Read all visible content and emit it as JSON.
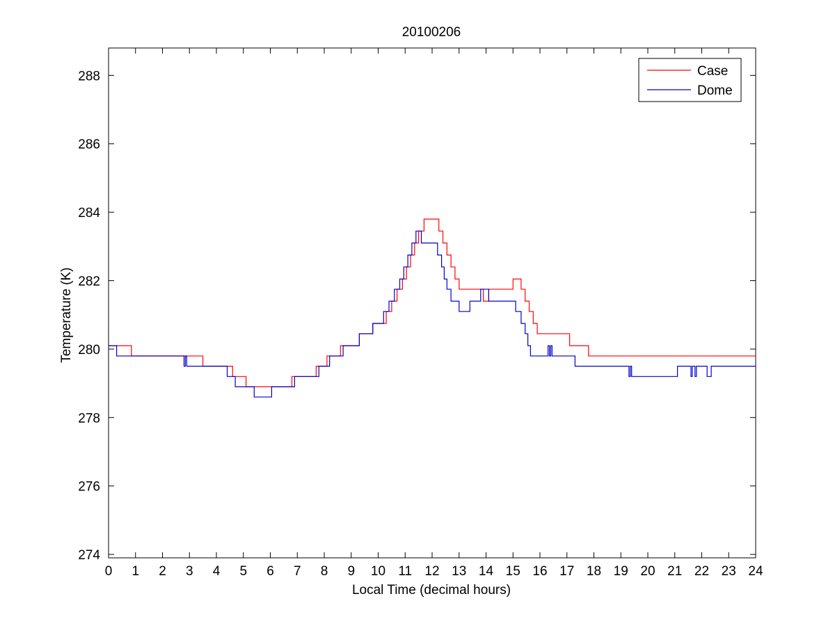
{
  "chart_data": {
    "type": "line",
    "title": "20100206",
    "xlabel": "Local Time (decimal hours)",
    "ylabel": "Temperature (K)",
    "xlim": [
      0,
      24
    ],
    "ylim": [
      273.9,
      288.8
    ],
    "xticks": [
      0,
      1,
      2,
      3,
      4,
      5,
      6,
      7,
      8,
      9,
      10,
      11,
      12,
      13,
      14,
      15,
      16,
      17,
      18,
      19,
      20,
      21,
      22,
      23,
      24
    ],
    "yticks": [
      274,
      276,
      278,
      280,
      282,
      284,
      286,
      288
    ],
    "grid": false,
    "legend_position": "top-right",
    "series": [
      {
        "name": "Case",
        "color": "#ff0000",
        "x": [
          0,
          0.85,
          0.85,
          3.5,
          3.5,
          4.6,
          4.6,
          5.1,
          5.1,
          6.05,
          6.05,
          6.8,
          6.8,
          7.7,
          7.7,
          8.1,
          8.1,
          8.6,
          8.6,
          9.3,
          9.3,
          9.8,
          9.8,
          10.3,
          10.3,
          10.5,
          10.5,
          10.7,
          10.7,
          10.9,
          10.9,
          11.05,
          11.05,
          11.2,
          11.2,
          11.35,
          11.35,
          11.5,
          11.5,
          11.7,
          11.7,
          12.25,
          12.25,
          12.4,
          12.4,
          12.55,
          12.55,
          12.7,
          12.7,
          12.85,
          12.85,
          13.0,
          13.0,
          13.9,
          13.9,
          14.1,
          14.1,
          15.0,
          15.0,
          15.3,
          15.3,
          15.45,
          15.45,
          15.6,
          15.6,
          15.75,
          15.75,
          15.9,
          15.9,
          16.1,
          16.1,
          17.1,
          17.1,
          17.8,
          17.8,
          24
        ],
        "y": [
          280.1,
          280.1,
          279.8,
          279.8,
          279.5,
          279.5,
          279.2,
          279.2,
          278.9,
          278.9,
          278.9,
          278.9,
          279.2,
          279.2,
          279.5,
          279.5,
          279.8,
          279.8,
          280.1,
          280.1,
          280.45,
          280.45,
          280.75,
          280.75,
          281.1,
          281.1,
          281.4,
          281.4,
          281.75,
          281.75,
          282.05,
          282.05,
          282.4,
          282.4,
          282.75,
          282.75,
          283.1,
          283.1,
          283.45,
          283.45,
          283.8,
          283.8,
          283.45,
          283.45,
          283.1,
          283.1,
          282.75,
          282.75,
          282.4,
          282.4,
          282.05,
          282.05,
          281.75,
          281.75,
          281.4,
          281.4,
          281.75,
          281.75,
          282.05,
          282.05,
          281.75,
          281.75,
          281.4,
          281.4,
          281.1,
          281.1,
          280.75,
          280.75,
          280.45,
          280.45,
          280.45,
          280.45,
          280.1,
          280.1,
          279.8,
          279.8
        ]
      },
      {
        "name": "Dome",
        "color": "#0000cc",
        "x": [
          0,
          0.3,
          0.3,
          2.8,
          2.8,
          2.85,
          2.85,
          2.9,
          2.9,
          2.95,
          2.95,
          4.4,
          4.4,
          4.7,
          4.7,
          5.4,
          5.4,
          6.05,
          6.05,
          6.9,
          6.9,
          7.8,
          7.8,
          8.2,
          8.2,
          8.7,
          8.7,
          9.3,
          9.3,
          9.8,
          9.8,
          10.2,
          10.2,
          10.4,
          10.4,
          10.6,
          10.6,
          10.8,
          10.8,
          10.95,
          10.95,
          11.1,
          11.1,
          11.25,
          11.25,
          11.4,
          11.4,
          11.6,
          11.6,
          12.2,
          12.2,
          12.35,
          12.35,
          12.45,
          12.45,
          12.55,
          12.55,
          12.7,
          12.7,
          13.0,
          13.0,
          13.4,
          13.4,
          13.8,
          13.8,
          14.1,
          14.1,
          15.1,
          15.1,
          15.3,
          15.3,
          15.45,
          15.45,
          15.55,
          15.55,
          15.65,
          15.65,
          16.3,
          16.3,
          16.35,
          16.35,
          16.4,
          16.4,
          16.45,
          16.45,
          17.3,
          17.3,
          19.3,
          19.3,
          19.35,
          19.35,
          19.4,
          19.4,
          21.1,
          21.1,
          21.6,
          21.6,
          21.65,
          21.65,
          21.75,
          21.75,
          21.8,
          21.8,
          22.2,
          22.2,
          22.35,
          22.35,
          24
        ],
        "y": [
          280.1,
          280.1,
          279.8,
          279.8,
          279.5,
          279.5,
          279.8,
          279.8,
          279.5,
          279.5,
          279.5,
          279.5,
          279.2,
          279.2,
          278.9,
          278.9,
          278.6,
          278.6,
          278.9,
          278.9,
          279.2,
          279.2,
          279.5,
          279.5,
          279.8,
          279.8,
          280.1,
          280.1,
          280.45,
          280.45,
          280.75,
          280.75,
          281.1,
          281.1,
          281.4,
          281.4,
          281.75,
          281.75,
          282.05,
          282.05,
          282.4,
          282.4,
          282.75,
          282.75,
          283.1,
          283.1,
          283.45,
          283.45,
          283.1,
          283.1,
          282.75,
          282.75,
          282.4,
          282.4,
          282.05,
          282.05,
          281.75,
          281.75,
          281.4,
          281.4,
          281.1,
          281.1,
          281.4,
          281.4,
          281.75,
          281.75,
          281.4,
          281.4,
          281.1,
          281.1,
          280.75,
          280.75,
          280.45,
          280.45,
          280.1,
          280.1,
          279.8,
          279.8,
          280.1,
          280.1,
          279.8,
          279.8,
          280.1,
          280.1,
          279.8,
          279.8,
          279.5,
          279.5,
          279.2,
          279.2,
          279.5,
          279.5,
          279.2,
          279.2,
          279.5,
          279.5,
          279.2,
          279.2,
          279.5,
          279.5,
          279.2,
          279.2,
          279.5,
          279.5,
          279.2,
          279.2,
          279.5,
          279.5
        ]
      }
    ]
  }
}
